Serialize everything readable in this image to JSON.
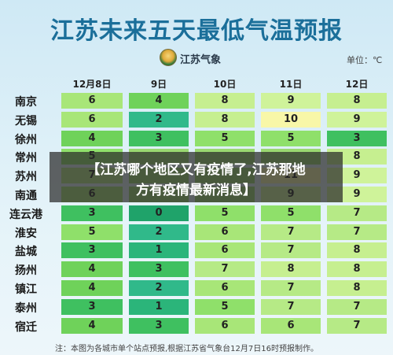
{
  "title": "江苏未来五天最低气温预报",
  "logo_text": "江苏气象",
  "unit": "单位：℃",
  "dates": [
    "12月8日",
    "9日",
    "10日",
    "11日",
    "12日"
  ],
  "cities": [
    {
      "name": "南京",
      "temps": [
        "6",
        "4",
        "8",
        "9",
        "8"
      ]
    },
    {
      "name": "无锡",
      "temps": [
        "6",
        "2",
        "8",
        "10",
        "9"
      ]
    },
    {
      "name": "徐州",
      "temps": [
        "4",
        "3",
        "5",
        "5",
        "3"
      ]
    },
    {
      "name": "常州",
      "temps": [
        "5",
        "",
        "",
        "",
        "8"
      ]
    },
    {
      "name": "苏州",
      "temps": [
        "7",
        "",
        "",
        "11",
        "9"
      ]
    },
    {
      "name": "南通",
      "temps": [
        "6",
        "",
        "",
        "9",
        "9"
      ]
    },
    {
      "name": "连云港",
      "temps": [
        "3",
        "0",
        "5",
        "5",
        "7"
      ]
    },
    {
      "name": "淮安",
      "temps": [
        "5",
        "2",
        "6",
        "7",
        "7"
      ]
    },
    {
      "name": "盐城",
      "temps": [
        "3",
        "1",
        "6",
        "7",
        "8"
      ]
    },
    {
      "name": "扬州",
      "temps": [
        "4",
        "3",
        "7",
        "8",
        "8"
      ]
    },
    {
      "name": "镇江",
      "temps": [
        "4",
        "2",
        "6",
        "7",
        "8"
      ]
    },
    {
      "name": "泰州",
      "temps": [
        "3",
        "1",
        "5",
        "7",
        "7"
      ]
    },
    {
      "name": "宿迁",
      "temps": [
        "4",
        "3",
        "6",
        "6",
        "7"
      ]
    }
  ],
  "colors": {
    "t0": "#1fa36a",
    "t1": "#2bb57a",
    "t2": "#30b98a",
    "t3": "#3fc060",
    "t4": "#6fd25a",
    "t5": "#8fe06a",
    "t6": "#a8e678",
    "t7": "#b6ea86",
    "t8": "#c6ef90",
    "t9": "#cff39a",
    "t10": "#f8f7a8",
    "t11": "#f8f7a8"
  },
  "banner": {
    "line1": "【江苏哪个地区又有疫情了,江苏那地",
    "line2": "方有疫情最新消息】"
  },
  "note": "注：本图为各城市单个站点预报,根据江苏省气象台12月7日16时预报制作。"
}
